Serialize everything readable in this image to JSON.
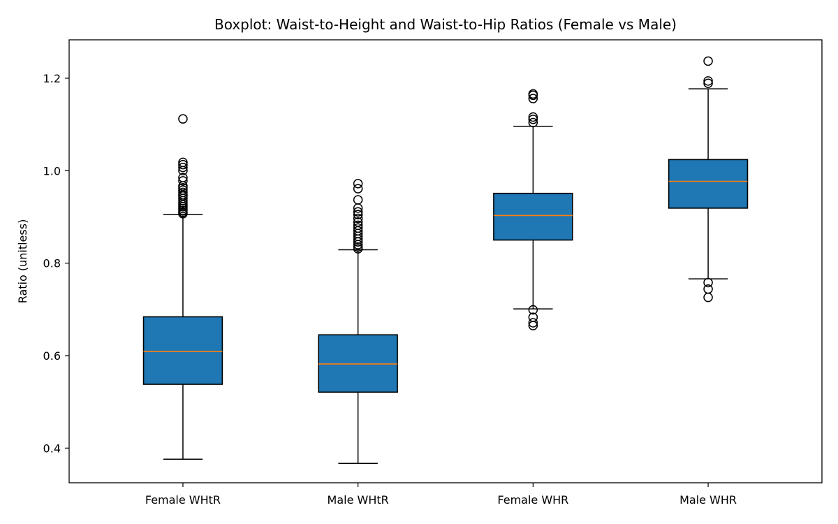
{
  "chart_data": {
    "type": "boxplot",
    "title": "Boxplot: Waist-to-Height and Waist-to-Hip Ratios (Female vs Male)",
    "xlabel": "",
    "ylabel": "Ratio (unitless)",
    "ylim": [
      0.325,
      1.283
    ],
    "yticks": [
      0.4,
      0.6,
      0.8,
      1.0,
      1.2
    ],
    "ytick_labels": [
      "0.4",
      "0.6",
      "0.8",
      "1.0",
      "1.2"
    ],
    "grid": false,
    "colors": {
      "box_fill": "#1f77b4",
      "median": "#ff7f0e",
      "edge": "#000000"
    },
    "categories": [
      "Female WHtR",
      "Male WHtR",
      "Female WHR",
      "Male WHR"
    ],
    "boxes": [
      {
        "whisker_low": 0.376,
        "q1": 0.538,
        "median": 0.609,
        "q3": 0.684,
        "whisker_high": 0.905,
        "outliers": [
          1.112,
          1.018,
          1.013,
          1.007,
          1.0,
          0.985,
          0.978,
          0.967,
          0.963,
          0.958,
          0.953,
          0.948,
          0.945,
          0.94,
          0.935,
          0.93,
          0.926,
          0.922,
          0.918,
          0.914,
          0.91,
          0.907
        ]
      },
      {
        "whisker_low": 0.367,
        "q1": 0.521,
        "median": 0.582,
        "q3": 0.645,
        "whisker_high": 0.829,
        "outliers": [
          0.972,
          0.961,
          0.937,
          0.919,
          0.911,
          0.905,
          0.897,
          0.889,
          0.882,
          0.876,
          0.87,
          0.864,
          0.858,
          0.852,
          0.846,
          0.84,
          0.835,
          0.831
        ]
      },
      {
        "whisker_low": 0.701,
        "q1": 0.85,
        "median": 0.903,
        "q3": 0.951,
        "whisker_high": 1.096,
        "outliers": [
          1.166,
          1.163,
          1.156,
          1.116,
          1.111,
          1.104,
          0.699,
          0.683,
          0.671,
          0.665
        ]
      },
      {
        "whisker_low": 0.766,
        "q1": 0.919,
        "median": 0.977,
        "q3": 1.024,
        "whisker_high": 1.177,
        "outliers": [
          1.237,
          1.194,
          1.189,
          0.758,
          0.744,
          0.726
        ]
      }
    ]
  }
}
